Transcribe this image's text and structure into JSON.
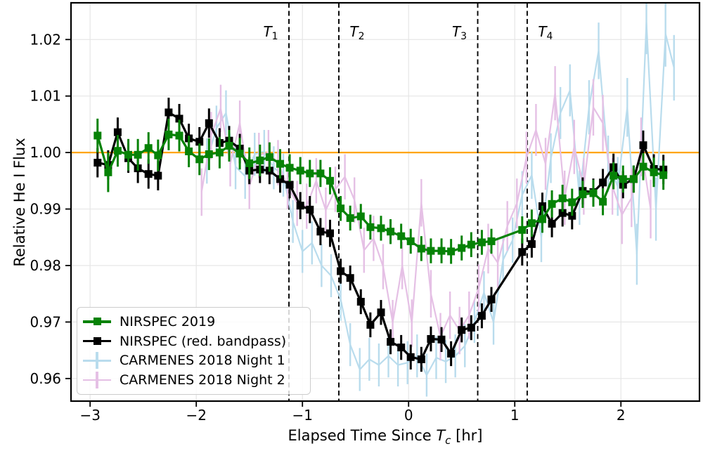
{
  "chart_data": {
    "type": "line",
    "title": "",
    "ylabel": "Relative He I Flux",
    "xlabel_parts": {
      "prefix": "Elapsed Time Since ",
      "symbol": "T",
      "subscript": "c",
      "suffix": " [hr]"
    },
    "x_axis": {
      "lim": [
        -3.18,
        2.74
      ],
      "ticks": [
        -3,
        -2,
        -1,
        0,
        1,
        2
      ],
      "labels": [
        "−3",
        "−2",
        "−1",
        "0",
        "1",
        "2"
      ]
    },
    "y_axis": {
      "lim": [
        0.956,
        1.0265
      ],
      "ticks": [
        0.96,
        0.97,
        0.98,
        0.99,
        1.0,
        1.01,
        1.02
      ],
      "labels": [
        "0.96",
        "0.97",
        "0.98",
        "0.99",
        "1.00",
        "1.01",
        "1.02"
      ]
    },
    "grid": true,
    "grid_color": "#e6e6e6",
    "reference_line": {
      "y": 1.0,
      "color": "#FFA500"
    },
    "contacts": [
      {
        "symbol": "T",
        "sub": "1",
        "t": -1.127,
        "label_side": "left"
      },
      {
        "symbol": "T",
        "sub": "2",
        "t": -0.657,
        "label_side": "right"
      },
      {
        "symbol": "T",
        "sub": "3",
        "t": 0.651,
        "label_side": "left"
      },
      {
        "symbol": "T",
        "sub": "4",
        "t": 1.117,
        "label_side": "right"
      }
    ],
    "legend": {
      "position": "lower left"
    },
    "series": [
      {
        "name": "NIRSPEC 2019",
        "color": "#068206",
        "marker": "square",
        "marker_size": 11,
        "line_width": 3.2,
        "err_width": 3.0,
        "zorder": 4,
        "points": [
          [
            -2.93,
            1.003,
            0.003
          ],
          [
            -2.83,
            0.9965,
            0.0035
          ],
          [
            -2.74,
            1.0003,
            0.0028
          ],
          [
            -2.64,
            0.9996,
            0.0028
          ],
          [
            -2.55,
            0.9996,
            0.0028
          ],
          [
            -2.45,
            1.0008,
            0.0028
          ],
          [
            -2.36,
            0.9995,
            0.0028
          ],
          [
            -2.26,
            1.0032,
            0.0028
          ],
          [
            -2.16,
            1.003,
            0.0028
          ],
          [
            -2.07,
            1.0002,
            0.0028
          ],
          [
            -1.97,
            0.9988,
            0.0028
          ],
          [
            -1.88,
            0.9997,
            0.0028
          ],
          [
            -1.78,
            1.0,
            0.0028
          ],
          [
            -1.69,
            1.0012,
            0.0028
          ],
          [
            -1.59,
            0.9998,
            0.0028
          ],
          [
            -1.5,
            0.9981,
            0.0028
          ],
          [
            -1.4,
            0.9986,
            0.0028
          ],
          [
            -1.31,
            0.9992,
            0.0026
          ],
          [
            -1.21,
            0.998,
            0.0026
          ],
          [
            -1.12,
            0.9973,
            0.0024
          ],
          [
            -1.02,
            0.9968,
            0.0024
          ],
          [
            -0.93,
            0.9963,
            0.0024
          ],
          [
            -0.83,
            0.9963,
            0.0024
          ],
          [
            -0.74,
            0.995,
            0.0024
          ],
          [
            -0.64,
            0.9901,
            0.0022
          ],
          [
            -0.55,
            0.9884,
            0.0022
          ],
          [
            -0.45,
            0.9887,
            0.0022
          ],
          [
            -0.36,
            0.9868,
            0.0022
          ],
          [
            -0.26,
            0.9866,
            0.0022
          ],
          [
            -0.17,
            0.986,
            0.0022
          ],
          [
            -0.07,
            0.9852,
            0.0022
          ],
          [
            0.02,
            0.9843,
            0.0022
          ],
          [
            0.12,
            0.983,
            0.0022
          ],
          [
            0.21,
            0.9826,
            0.0022
          ],
          [
            0.31,
            0.9826,
            0.0022
          ],
          [
            0.4,
            0.9825,
            0.0022
          ],
          [
            0.5,
            0.9831,
            0.0022
          ],
          [
            0.59,
            0.9837,
            0.0022
          ],
          [
            0.69,
            0.9841,
            0.0022
          ],
          [
            0.78,
            0.9843,
            0.0022
          ],
          [
            1.07,
            0.9863,
            0.0024
          ],
          [
            1.16,
            0.9875,
            0.0024
          ],
          [
            1.26,
            0.9882,
            0.0024
          ],
          [
            1.35,
            0.9909,
            0.0024
          ],
          [
            1.45,
            0.9919,
            0.0024
          ],
          [
            1.54,
            0.9912,
            0.0024
          ],
          [
            1.64,
            0.9926,
            0.0024
          ],
          [
            1.74,
            0.9928,
            0.0024
          ],
          [
            1.83,
            0.9913,
            0.0024
          ],
          [
            1.93,
            0.9959,
            0.0024
          ],
          [
            2.02,
            0.9953,
            0.0024
          ],
          [
            2.12,
            0.9953,
            0.0024
          ],
          [
            2.21,
            0.9975,
            0.0024
          ],
          [
            2.31,
            0.9965,
            0.0026
          ],
          [
            2.4,
            0.996,
            0.0026
          ]
        ]
      },
      {
        "name": "NIRSPEC (red. bandpass)",
        "color": "#000000",
        "marker": "square",
        "marker_size": 11,
        "line_width": 3.2,
        "err_width": 3.0,
        "zorder": 3,
        "points": [
          [
            -2.93,
            0.9982,
            0.0026
          ],
          [
            -2.83,
            0.9978,
            0.0026
          ],
          [
            -2.74,
            1.0036,
            0.0026
          ],
          [
            -2.64,
            0.999,
            0.0026
          ],
          [
            -2.55,
            0.9972,
            0.0026
          ],
          [
            -2.45,
            0.9962,
            0.0026
          ],
          [
            -2.36,
            0.9959,
            0.0026
          ],
          [
            -2.26,
            1.0071,
            0.0026
          ],
          [
            -2.16,
            1.006,
            0.0026
          ],
          [
            -2.07,
            1.0025,
            0.0026
          ],
          [
            -1.97,
            1.0019,
            0.0026
          ],
          [
            -1.88,
            1.0052,
            0.0026
          ],
          [
            -1.78,
            1.0017,
            0.0026
          ],
          [
            -1.69,
            1.0021,
            0.0026
          ],
          [
            -1.59,
            1.0007,
            0.0026
          ],
          [
            -1.5,
            0.9968,
            0.0024
          ],
          [
            -1.4,
            0.997,
            0.0024
          ],
          [
            -1.31,
            0.9968,
            0.0024
          ],
          [
            -1.21,
            0.9953,
            0.0024
          ],
          [
            -1.12,
            0.9943,
            0.0024
          ],
          [
            -1.02,
            0.9906,
            0.0024
          ],
          [
            -0.93,
            0.9899,
            0.0024
          ],
          [
            -0.83,
            0.986,
            0.0024
          ],
          [
            -0.74,
            0.9857,
            0.0024
          ],
          [
            -0.64,
            0.979,
            0.0022
          ],
          [
            -0.55,
            0.9778,
            0.0022
          ],
          [
            -0.45,
            0.9736,
            0.0022
          ],
          [
            -0.36,
            0.9695,
            0.0022
          ],
          [
            -0.26,
            0.9717,
            0.0022
          ],
          [
            -0.17,
            0.9665,
            0.0022
          ],
          [
            -0.07,
            0.9655,
            0.0022
          ],
          [
            0.02,
            0.9638,
            0.0022
          ],
          [
            0.12,
            0.9634,
            0.0022
          ],
          [
            0.21,
            0.967,
            0.0022
          ],
          [
            0.31,
            0.9669,
            0.0022
          ],
          [
            0.4,
            0.9644,
            0.0022
          ],
          [
            0.5,
            0.9686,
            0.0022
          ],
          [
            0.59,
            0.969,
            0.0022
          ],
          [
            0.69,
            0.9711,
            0.0022
          ],
          [
            0.78,
            0.974,
            0.0022
          ],
          [
            1.07,
            0.9824,
            0.0024
          ],
          [
            1.16,
            0.9838,
            0.0024
          ],
          [
            1.26,
            0.9905,
            0.0024
          ],
          [
            1.35,
            0.9874,
            0.0024
          ],
          [
            1.45,
            0.9893,
            0.0024
          ],
          [
            1.54,
            0.9888,
            0.0024
          ],
          [
            1.64,
            0.9932,
            0.0024
          ],
          [
            1.74,
            0.993,
            0.0024
          ],
          [
            1.83,
            0.9947,
            0.0024
          ],
          [
            1.93,
            0.9974,
            0.0024
          ],
          [
            2.02,
            0.9943,
            0.0024
          ],
          [
            2.12,
            0.9953,
            0.0024
          ],
          [
            2.21,
            1.0013,
            0.0026
          ],
          [
            2.31,
            0.9971,
            0.0026
          ],
          [
            2.4,
            0.997,
            0.0026
          ]
        ]
      },
      {
        "name": "CARMENES 2018 Night 1",
        "color": "#b9dced",
        "marker": "errorbar-cross",
        "marker_size": 0,
        "line_width": 2.2,
        "err_width": 2.4,
        "zorder": 1,
        "points": [
          [
            -1.9,
            0.9985,
            0.004
          ],
          [
            -1.81,
            1.0043,
            0.004
          ],
          [
            -1.72,
            1.007,
            0.004
          ],
          [
            -1.63,
            0.9975,
            0.004
          ],
          [
            -1.54,
            0.9958,
            0.004
          ],
          [
            -1.45,
            0.9997,
            0.0038
          ],
          [
            -1.36,
            1.0002,
            0.0038
          ],
          [
            -1.27,
            0.9973,
            0.0038
          ],
          [
            -1.18,
            0.996,
            0.0038
          ],
          [
            -1.09,
            0.9878,
            0.0038
          ],
          [
            -1.0,
            0.9825,
            0.0038
          ],
          [
            -0.91,
            0.984,
            0.0038
          ],
          [
            -0.82,
            0.98,
            0.0038
          ],
          [
            -0.73,
            0.9782,
            0.0038
          ],
          [
            -0.64,
            0.974,
            0.0038
          ],
          [
            -0.55,
            0.966,
            0.0038
          ],
          [
            -0.46,
            0.9616,
            0.0038
          ],
          [
            -0.37,
            0.9634,
            0.0038
          ],
          [
            -0.28,
            0.9624,
            0.0038
          ],
          [
            -0.19,
            0.964,
            0.0038
          ],
          [
            -0.1,
            0.9624,
            0.0038
          ],
          [
            -0.01,
            0.9628,
            0.0038
          ],
          [
            0.08,
            0.964,
            0.0038
          ],
          [
            0.17,
            0.9606,
            0.0038
          ],
          [
            0.26,
            0.9637,
            0.0038
          ],
          [
            0.35,
            0.963,
            0.0038
          ],
          [
            0.44,
            0.964,
            0.0038
          ],
          [
            0.53,
            0.9658,
            0.0038
          ],
          [
            0.62,
            0.9701,
            0.0038
          ],
          [
            0.71,
            0.9752,
            0.0038
          ],
          [
            0.8,
            0.97,
            0.004
          ],
          [
            0.89,
            0.981,
            0.004
          ],
          [
            0.98,
            0.9845,
            0.004
          ],
          [
            1.07,
            0.9925,
            0.0042
          ],
          [
            1.16,
            0.996,
            0.0042
          ],
          [
            1.25,
            0.985,
            0.0044
          ],
          [
            1.34,
            0.999,
            0.0044
          ],
          [
            1.43,
            1.007,
            0.0046
          ],
          [
            1.52,
            1.011,
            0.0046
          ],
          [
            1.61,
            0.992,
            0.0048
          ],
          [
            1.7,
            1.008,
            0.0048
          ],
          [
            1.79,
            1.018,
            0.005
          ],
          [
            1.88,
            0.998,
            0.005
          ],
          [
            1.97,
            0.994,
            0.0052
          ],
          [
            2.06,
            1.008,
            0.0052
          ],
          [
            2.15,
            0.982,
            0.0054
          ],
          [
            2.24,
            1.023,
            0.0056
          ],
          [
            2.33,
            0.99,
            0.0056
          ],
          [
            2.42,
            1.021,
            0.0058
          ],
          [
            2.5,
            1.015,
            0.0058
          ]
        ]
      },
      {
        "name": "CARMENES 2018 Night 2",
        "color": "#e5c0e5",
        "marker": "errorbar-cross",
        "marker_size": 0,
        "line_width": 2.2,
        "err_width": 2.4,
        "zorder": 2,
        "points": [
          [
            -1.95,
            0.993,
            0.0042
          ],
          [
            -1.86,
            1.003,
            0.0042
          ],
          [
            -1.77,
            1.0078,
            0.0042
          ],
          [
            -1.68,
            0.998,
            0.004
          ],
          [
            -1.59,
            1.0052,
            0.004
          ],
          [
            -1.5,
            0.994,
            0.004
          ],
          [
            -1.41,
            0.9995,
            0.004
          ],
          [
            -1.32,
            1.0,
            0.004
          ],
          [
            -1.23,
            0.9982,
            0.004
          ],
          [
            -1.14,
            0.994,
            0.004
          ],
          [
            -1.05,
            0.991,
            0.004
          ],
          [
            -0.96,
            0.9905,
            0.004
          ],
          [
            -0.87,
            0.995,
            0.004
          ],
          [
            -0.78,
            0.9898,
            0.004
          ],
          [
            -0.69,
            0.9935,
            0.004
          ],
          [
            -0.6,
            0.9957,
            0.004
          ],
          [
            -0.51,
            0.9916,
            0.004
          ],
          [
            -0.42,
            0.9827,
            0.004
          ],
          [
            -0.33,
            0.9848,
            0.004
          ],
          [
            -0.24,
            0.9798,
            0.004
          ],
          [
            -0.15,
            0.9699,
            0.004
          ],
          [
            -0.06,
            0.98,
            0.0042
          ],
          [
            0.03,
            0.9698,
            0.0042
          ],
          [
            0.12,
            0.9911,
            0.0042
          ],
          [
            0.21,
            0.975,
            0.0042
          ],
          [
            0.3,
            0.9674,
            0.0042
          ],
          [
            0.39,
            0.9712,
            0.0042
          ],
          [
            0.48,
            0.9685,
            0.0042
          ],
          [
            0.57,
            0.9712,
            0.0042
          ],
          [
            0.66,
            0.976,
            0.0042
          ],
          [
            0.75,
            0.983,
            0.0044
          ],
          [
            0.84,
            0.9805,
            0.0044
          ],
          [
            0.93,
            0.987,
            0.0044
          ],
          [
            1.02,
            0.991,
            0.0044
          ],
          [
            1.11,
            0.9991,
            0.0046
          ],
          [
            1.2,
            1.004,
            0.0046
          ],
          [
            1.29,
            0.998,
            0.0046
          ],
          [
            1.38,
            1.0105,
            0.0048
          ],
          [
            1.47,
            0.992,
            0.0048
          ],
          [
            1.56,
            1.001,
            0.0048
          ],
          [
            1.65,
            0.994,
            0.005
          ],
          [
            1.74,
            1.008,
            0.005
          ],
          [
            1.83,
            1.0052,
            0.005
          ],
          [
            1.92,
            0.994,
            0.005
          ],
          [
            2.01,
            0.989,
            0.0052
          ],
          [
            2.1,
            0.992,
            0.0052
          ],
          [
            2.19,
            1.001,
            0.0052
          ],
          [
            2.28,
            0.99,
            0.0052
          ]
        ]
      }
    ]
  }
}
